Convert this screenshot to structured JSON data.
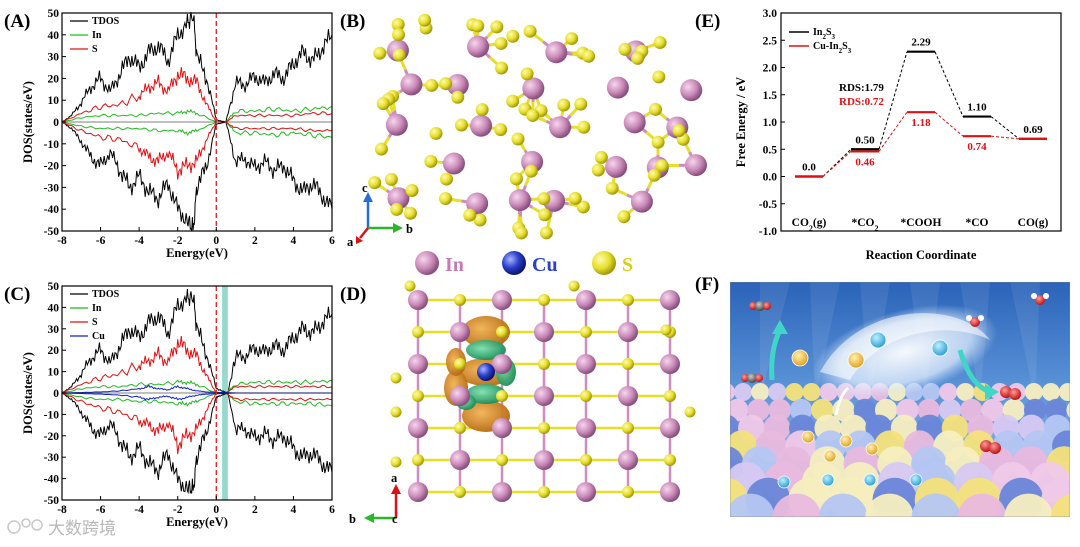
{
  "panel_labels": {
    "A": "(A)",
    "B": "(B)",
    "C": "(C)",
    "D": "(D)",
    "E": "(E)",
    "F": "(F)"
  },
  "dos_axes": {
    "xlabel": "Energy(eV)",
    "ylabel": "DOS(states/eV)",
    "xticks": [
      "-8",
      "-6",
      "-4",
      "-2",
      "0",
      "2",
      "4",
      "6"
    ],
    "yticks": [
      "50",
      "40",
      "30",
      "20",
      "10",
      "0",
      "-10",
      "-20",
      "-30",
      "-40",
      "-50"
    ]
  },
  "crystal_legend": {
    "in": "In",
    "cu": "Cu",
    "s": "S"
  },
  "axis_triads": {
    "B": {
      "up": "c",
      "right": "b",
      "out": "a"
    },
    "D": {
      "up": "a",
      "left": "b",
      "out": "c"
    }
  },
  "colors": {
    "tdos": "#000000",
    "in": "#22bb22",
    "s": "#dd1111",
    "cu": "#1122cc",
    "in_atom": "#d08cc0",
    "cu_atom": "#2a3fcc",
    "s_atom": "#e6de2a",
    "band": "#8fd3c8"
  },
  "watermark": "大数跨境",
  "chart_data": [
    {
      "type": "line",
      "panel": "A",
      "xlabel": "Energy(eV)",
      "ylabel": "DOS(states/eV)",
      "xlim": [
        -8,
        6
      ],
      "ylim": [
        -50,
        50
      ],
      "fermi_level": 0,
      "series": [
        {
          "name": "TDOS",
          "color": "#000000",
          "x": [
            -8,
            -7.5,
            -7,
            -6.5,
            -6,
            -5.5,
            -5,
            -4.5,
            -4,
            -3.5,
            -3,
            -2.5,
            -2,
            -1.5,
            -1.2,
            -1,
            -0.5,
            0,
            0.5,
            1,
            1.5,
            2,
            2.5,
            3,
            3.5,
            4,
            4.5,
            5,
            5.5,
            6
          ],
          "y": [
            0,
            3,
            9,
            16,
            20,
            14,
            22,
            30,
            25,
            32,
            35,
            28,
            40,
            45,
            49,
            30,
            20,
            1,
            0,
            18,
            17,
            21,
            18,
            22,
            20,
            27,
            32,
            28,
            34,
            40
          ]
        },
        {
          "name": "TDOS",
          "color": "#000000",
          "x": [
            -8,
            -7.5,
            -7,
            -6.5,
            -6,
            -5.5,
            -5,
            -4.5,
            -4,
            -3.5,
            -3,
            -2.5,
            -2,
            -1.5,
            -1.2,
            -1,
            -0.5,
            0,
            0.5,
            1,
            1.5,
            2,
            2.5,
            3,
            3.5,
            4,
            4.5,
            5,
            5.5,
            6
          ],
          "y": [
            0,
            -3,
            -9,
            -16,
            -20,
            -14,
            -22,
            -30,
            -25,
            -32,
            -35,
            -28,
            -40,
            -45,
            -49,
            -30,
            -20,
            -1,
            0,
            -18,
            -17,
            -21,
            -18,
            -22,
            -20,
            -27,
            -32,
            -28,
            -34,
            -40
          ]
        },
        {
          "name": "In",
          "color": "#22bb22",
          "x": [
            -8,
            -7,
            -6,
            -5,
            -4,
            -3,
            -2,
            -1.5,
            -1,
            0,
            0.5,
            1,
            2,
            3,
            4,
            5,
            6
          ],
          "y": [
            0,
            2,
            3,
            3,
            3,
            4,
            4,
            5,
            4,
            0,
            0,
            5,
            5,
            6,
            5,
            6,
            7
          ]
        },
        {
          "name": "In",
          "color": "#22bb22",
          "x": [
            -8,
            -7,
            -6,
            -5,
            -4,
            -3,
            -2,
            -1.5,
            -1,
            0,
            0.5,
            1,
            2,
            3,
            4,
            5,
            6
          ],
          "y": [
            0,
            -2,
            -3,
            -3,
            -3,
            -4,
            -4,
            -5,
            -4,
            0,
            0,
            -5,
            -5,
            -6,
            -5,
            -6,
            -7
          ]
        },
        {
          "name": "S",
          "color": "#dd1111",
          "x": [
            -8,
            -7,
            -6,
            -5,
            -4,
            -3.5,
            -3,
            -2.5,
            -2,
            -1.5,
            -1,
            -0.5,
            0,
            0.5,
            1,
            2,
            3,
            4,
            5,
            6
          ],
          "y": [
            0,
            4,
            7,
            8,
            12,
            16,
            18,
            14,
            22,
            20,
            18,
            8,
            0,
            0,
            3,
            3,
            3,
            3,
            4,
            4
          ]
        },
        {
          "name": "S",
          "color": "#dd1111",
          "x": [
            -8,
            -7,
            -6,
            -5,
            -4,
            -3.5,
            -3,
            -2.5,
            -2,
            -1.5,
            -1,
            -0.5,
            0,
            0.5,
            1,
            2,
            3,
            4,
            5,
            6
          ],
          "y": [
            0,
            -4,
            -7,
            -8,
            -12,
            -16,
            -18,
            -14,
            -22,
            -20,
            -18,
            -8,
            0,
            0,
            -3,
            -3,
            -3,
            -3,
            -4,
            -4
          ]
        }
      ]
    },
    {
      "type": "line",
      "panel": "C",
      "xlabel": "Energy(eV)",
      "ylabel": "DOS(states/eV)",
      "xlim": [
        -8,
        6
      ],
      "ylim": [
        -50,
        50
      ],
      "fermi_level": 0,
      "highlight_band": [
        0.3,
        0.6
      ],
      "series": [
        {
          "name": "TDOS",
          "color": "#000000",
          "x": [
            -8,
            -7.5,
            -7,
            -6.5,
            -6,
            -5.5,
            -5,
            -4.5,
            -4,
            -3.5,
            -3,
            -2.5,
            -2,
            -1.5,
            -1.2,
            -1,
            -0.5,
            0,
            0.3,
            0.6,
            1,
            1.5,
            2,
            2.5,
            3,
            3.5,
            4,
            4.5,
            5,
            5.5,
            6
          ],
          "y": [
            0,
            3,
            9,
            16,
            20,
            14,
            22,
            30,
            26,
            33,
            36,
            28,
            41,
            44,
            45,
            30,
            18,
            2,
            1,
            0,
            17,
            17,
            21,
            19,
            22,
            20,
            26,
            30,
            28,
            33,
            37
          ]
        },
        {
          "name": "TDOS",
          "color": "#000000",
          "x": [
            -8,
            -7.5,
            -7,
            -6.5,
            -6,
            -5.5,
            -5,
            -4.5,
            -4,
            -3.5,
            -3,
            -2.5,
            -2,
            -1.5,
            -1.2,
            -1,
            -0.5,
            0,
            0.3,
            0.6,
            1,
            1.5,
            2,
            2.5,
            3,
            3.5,
            4,
            4.5,
            5,
            5.5,
            6
          ],
          "y": [
            0,
            -3,
            -9,
            -16,
            -20,
            -14,
            -22,
            -30,
            -26,
            -33,
            -36,
            -28,
            -41,
            -44,
            -45,
            -30,
            -18,
            -2,
            -1,
            0,
            -17,
            -17,
            -21,
            -19,
            -22,
            -20,
            -26,
            -30,
            -28,
            -33,
            -37
          ]
        },
        {
          "name": "In",
          "color": "#22bb22",
          "x": [
            -8,
            -7,
            -6,
            -5,
            -4,
            -3,
            -2,
            -1.5,
            -1,
            0,
            0.5,
            1,
            2,
            3,
            4,
            5,
            6
          ],
          "y": [
            0,
            2,
            3,
            3,
            4,
            4,
            5,
            5,
            4,
            0,
            0,
            4,
            5,
            5,
            5,
            5,
            6
          ]
        },
        {
          "name": "In",
          "color": "#22bb22",
          "x": [
            -8,
            -7,
            -6,
            -5,
            -4,
            -3,
            -2,
            -1.5,
            -1,
            0,
            0.5,
            1,
            2,
            3,
            4,
            5,
            6
          ],
          "y": [
            0,
            -2,
            -3,
            -3,
            -4,
            -4,
            -5,
            -5,
            -4,
            0,
            0,
            -4,
            -5,
            -5,
            -5,
            -5,
            -6
          ]
        },
        {
          "name": "S",
          "color": "#dd1111",
          "x": [
            -8,
            -7,
            -6,
            -5,
            -4,
            -3.5,
            -3,
            -2.5,
            -2,
            -1.5,
            -1,
            -0.5,
            0,
            0.5,
            1,
            2,
            3,
            4,
            5,
            6
          ],
          "y": [
            0,
            4,
            7,
            9,
            13,
            15,
            18,
            14,
            24,
            20,
            17,
            8,
            0,
            0,
            3,
            3,
            3,
            3,
            3,
            3
          ]
        },
        {
          "name": "S",
          "color": "#dd1111",
          "x": [
            -8,
            -7,
            -6,
            -5,
            -4,
            -3.5,
            -3,
            -2.5,
            -2,
            -1.5,
            -1,
            -0.5,
            0,
            0.5,
            1,
            2,
            3,
            4,
            5,
            6
          ],
          "y": [
            0,
            -4,
            -7,
            -9,
            -13,
            -15,
            -18,
            -14,
            -24,
            -20,
            -17,
            -8,
            0,
            0,
            -3,
            -3,
            -3,
            -3,
            -3,
            -3
          ]
        },
        {
          "name": "Cu",
          "color": "#1122cc",
          "x": [
            -8,
            -6,
            -5,
            -4,
            -3.5,
            -3,
            -2.5,
            -2,
            -1.5,
            -1,
            -0.5,
            0,
            0.5,
            1,
            3,
            6
          ],
          "y": [
            0,
            0.5,
            1,
            2,
            3,
            2,
            1.5,
            3,
            2,
            1,
            0.5,
            0.3,
            0.2,
            0,
            0,
            0
          ]
        },
        {
          "name": "Cu",
          "color": "#1122cc",
          "x": [
            -8,
            -6,
            -5,
            -4,
            -3.5,
            -3,
            -2.5,
            -2,
            -1.5,
            -1,
            -0.5,
            0,
            0.5,
            1,
            3,
            6
          ],
          "y": [
            0,
            -0.5,
            -1,
            -2,
            -3,
            -2,
            -1.5,
            -3,
            -2,
            -1,
            -0.5,
            -0.3,
            -0.2,
            0,
            0,
            0
          ]
        }
      ]
    },
    {
      "type": "line",
      "panel": "E",
      "subtype": "free-energy-diagram",
      "xlabel": "Reaction Coordinate",
      "ylabel": "Free Energy / eV",
      "ylim": [
        -1.0,
        3.0
      ],
      "yticks": [
        "3.0",
        "2.5",
        "2.0",
        "1.5",
        "1.0",
        "0.5",
        "0.0",
        "-0.5",
        "-1.0"
      ],
      "categories": [
        "CO2(g)",
        "*CO2",
        "*COOH",
        "*CO",
        "CO(g)"
      ],
      "category_labels": [
        {
          "base": "CO",
          "sub": "2",
          "tail": "(g)"
        },
        {
          "base": "*CO",
          "sub": "2",
          "tail": ""
        },
        {
          "base": "*COOH",
          "sub": "",
          "tail": ""
        },
        {
          "base": "*CO",
          "sub": "",
          "tail": ""
        },
        {
          "base": "CO(g)",
          "sub": "",
          "tail": ""
        }
      ],
      "series": [
        {
          "name": "In2S3",
          "label_base": "In",
          "label_sub1": "2",
          "label_mid": "S",
          "label_sub2": "3",
          "color": "#000000",
          "values": [
            0.0,
            0.5,
            2.29,
            1.1,
            0.69
          ],
          "value_labels": [
            "0.0",
            "0.50",
            "2.29",
            "1.10",
            "0.69"
          ]
        },
        {
          "name": "Cu-In2S3",
          "label_base": "Cu-In",
          "label_sub1": "2",
          "label_mid": "S",
          "label_sub2": "3",
          "color": "#dd1111",
          "values": [
            0.0,
            0.46,
            1.18,
            0.74,
            0.69
          ],
          "value_labels": [
            "",
            "0.46",
            "1.18",
            "0.74",
            ""
          ]
        }
      ],
      "annotations": [
        {
          "text": "RDS:1.79",
          "color": "#000000"
        },
        {
          "text": "RDS:0.72",
          "color": "#dd1111"
        }
      ]
    }
  ]
}
